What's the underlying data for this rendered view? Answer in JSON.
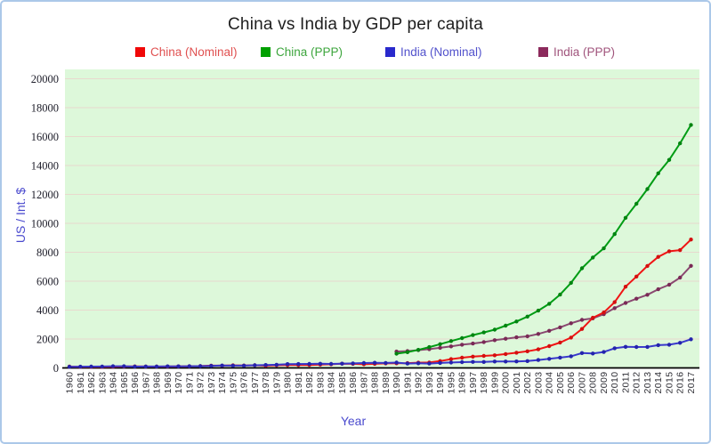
{
  "page": {
    "frame_border_color": "#abc8e9",
    "background_color": "#ffffff"
  },
  "chart_data": {
    "type": "line",
    "title": "China vs India by GDP per capita",
    "xlabel": "Year",
    "ylabel": "US / Int. $",
    "x": [
      1960,
      1961,
      1962,
      1963,
      1964,
      1965,
      1966,
      1967,
      1968,
      1969,
      1970,
      1971,
      1972,
      1973,
      1974,
      1975,
      1976,
      1977,
      1978,
      1979,
      1980,
      1981,
      1982,
      1983,
      1984,
      1985,
      1986,
      1987,
      1988,
      1989,
      1990,
      1991,
      1992,
      1993,
      1994,
      1995,
      1996,
      1997,
      1998,
      1999,
      2000,
      2001,
      2002,
      2003,
      2004,
      2005,
      2006,
      2007,
      2008,
      2009,
      2010,
      2011,
      2012,
      2013,
      2014,
      2015,
      2016,
      2017
    ],
    "ylim": [
      0,
      20000
    ],
    "ytick_step": 2000,
    "yticks": [
      0,
      2000,
      4000,
      6000,
      8000,
      10000,
      12000,
      14000,
      16000,
      18000,
      20000
    ],
    "grid": true,
    "plot_bg_color": "#ddf8da",
    "grid_color": "#e8d9ce",
    "axis_line_color": "#000000",
    "tick_label_color": "#1c1c28",
    "axis_title_color": "#4a4ace",
    "legend_position": "top",
    "marker": "circle",
    "series": [
      {
        "name": "China (Nominal)",
        "color": "#f01414",
        "dot_color": "#d40f0f",
        "swatch_color": "#f00808",
        "label_color": "#e05050",
        "start_year": 1960,
        "values": [
          90,
          76,
          71,
          74,
          86,
          98,
          104,
          97,
          92,
          100,
          113,
          119,
          132,
          157,
          160,
          178,
          165,
          185,
          156,
          184,
          195,
          197,
          203,
          225,
          251,
          294,
          282,
          252,
          283,
          311,
          318,
          333,
          366,
          377,
          473,
          610,
          709,
          782,
          829,
          873,
          959,
          1053,
          1149,
          1289,
          1509,
          1753,
          2099,
          2694,
          3468,
          3832,
          4550,
          5618,
          6317,
          7051,
          7679,
          8067,
          8148,
          8879
        ]
      },
      {
        "name": "China (PPP)",
        "color": "#009c14",
        "dot_color": "#008410",
        "swatch_color": "#00a000",
        "label_color": "#3da53d",
        "start_year": 1990,
        "values": [
          982,
          1087,
          1249,
          1438,
          1644,
          1858,
          2060,
          2270,
          2456,
          2648,
          2921,
          3212,
          3552,
          3960,
          4436,
          5068,
          5882,
          6894,
          7635,
          8270,
          9254,
          10384,
          11351,
          12368,
          13460,
          14390,
          15532,
          16807
        ]
      },
      {
        "name": "India (Nominal)",
        "color": "#3838cc",
        "dot_color": "#2424ad",
        "swatch_color": "#2929cc",
        "label_color": "#5252cc",
        "start_year": 1960,
        "values": [
          82,
          85,
          90,
          101,
          116,
          119,
          90,
          96,
          100,
          108,
          112,
          119,
          123,
          144,
          164,
          158,
          161,
          186,
          206,
          224,
          267,
          271,
          274,
          291,
          277,
          296,
          311,
          340,
          354,
          346,
          368,
          303,
          317,
          301,
          346,
          374,
          400,
          416,
          413,
          441,
          443,
          452,
          471,
          547,
          628,
          715,
          807,
          1028,
          999,
          1102,
          1358,
          1458,
          1444,
          1450,
          1574,
          1606,
          1733,
          1981
        ]
      },
      {
        "name": "India (PPP)",
        "color": "#8a4870",
        "dot_color": "#7a2a56",
        "swatch_color": "#8c2a5c",
        "label_color": "#a0547c",
        "start_year": 1990,
        "values": [
          1133,
          1163,
          1232,
          1297,
          1388,
          1487,
          1607,
          1684,
          1784,
          1918,
          2018,
          2114,
          2183,
          2351,
          2566,
          2807,
          3089,
          3321,
          3428,
          3717,
          4134,
          4493,
          4786,
          5057,
          5440,
          5754,
          6245,
          7056
        ]
      }
    ],
    "draw_order": [
      3,
      1,
      0,
      2
    ]
  }
}
